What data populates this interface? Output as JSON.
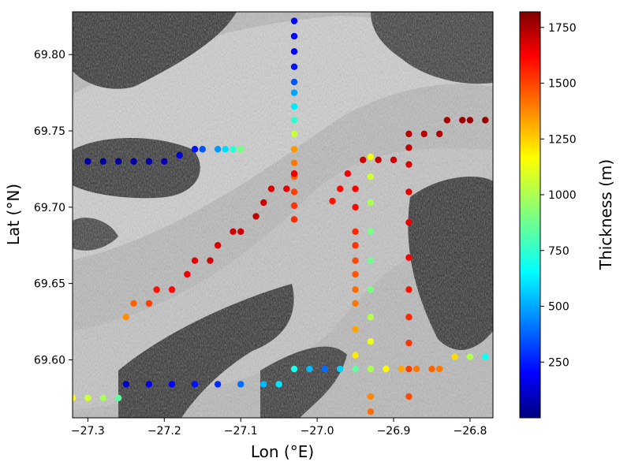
{
  "chart_data": {
    "type": "scatter",
    "title": "",
    "xlabel": "Lon (°E)",
    "ylabel": "Lat (°N)",
    "xlim": [
      -27.32,
      -26.77
    ],
    "ylim": [
      69.562,
      69.828
    ],
    "x_ticks": [
      -27.3,
      -27.2,
      -27.1,
      -27.0,
      -26.9,
      -26.8
    ],
    "x_tick_labels": [
      "−27.3",
      "−27.2",
      "−27.1",
      "−27.0",
      "−26.9",
      "−26.8"
    ],
    "y_ticks": [
      69.6,
      69.65,
      69.7,
      69.75,
      69.8
    ],
    "y_tick_labels": [
      "69.60",
      "69.65",
      "69.70",
      "69.75",
      "69.80"
    ],
    "grid": false,
    "background": "satellite image with glacier flow bands and dark ice-free mountains",
    "colorbar": {
      "label": "Thickness (m)",
      "colormap": "jet",
      "range": [
        0,
        1820
      ],
      "ticks": [
        250,
        500,
        750,
        1000,
        1250,
        1500,
        1750
      ],
      "tick_labels": [
        "250",
        "500",
        "750",
        "1000",
        "1250",
        "1500",
        "1750"
      ]
    },
    "survey_tracks": [
      {
        "name": "",
        "points": [
          [
            -27.03,
            69.822
          ],
          [
            -27.03,
            69.812
          ],
          [
            -27.03,
            69.802
          ],
          [
            -27.03,
            69.792
          ],
          [
            -27.03,
            69.782
          ],
          [
            -27.03,
            69.775
          ],
          [
            -27.03,
            69.766
          ],
          [
            -27.03,
            69.757
          ],
          [
            -27.03,
            69.748
          ],
          [
            -27.03,
            69.738
          ],
          [
            -27.03,
            69.729
          ],
          [
            -27.03,
            69.72
          ],
          [
            -27.03,
            69.71
          ],
          [
            -27.03,
            69.701
          ],
          [
            -27.03,
            69.692
          ]
        ],
        "thickness": [
          240,
          230,
          220,
          260,
          380,
          520,
          650,
          760,
          1040,
          1320,
          1380,
          1420,
          1480,
          1500,
          1520
        ]
      },
      {
        "name": "",
        "points": [
          [
            -27.3,
            69.73
          ],
          [
            -27.28,
            69.73
          ],
          [
            -27.26,
            69.73
          ],
          [
            -27.24,
            69.73
          ],
          [
            -27.22,
            69.73
          ],
          [
            -27.2,
            69.73
          ],
          [
            -27.18,
            69.734
          ],
          [
            -27.16,
            69.738
          ],
          [
            -27.15,
            69.738
          ],
          [
            -27.13,
            69.738
          ],
          [
            -27.12,
            69.738
          ],
          [
            -27.11,
            69.738
          ],
          [
            -27.1,
            69.738
          ]
        ],
        "thickness": [
          60,
          50,
          50,
          60,
          70,
          90,
          150,
          260,
          380,
          500,
          620,
          760,
          900
        ]
      },
      {
        "name": "",
        "points": [
          [
            -27.25,
            69.628
          ],
          [
            -27.24,
            69.637
          ],
          [
            -27.22,
            69.637
          ],
          [
            -27.21,
            69.646
          ],
          [
            -27.19,
            69.646
          ],
          [
            -27.17,
            69.656
          ],
          [
            -27.16,
            69.665
          ],
          [
            -27.14,
            69.665
          ],
          [
            -27.13,
            69.675
          ],
          [
            -27.11,
            69.684
          ],
          [
            -27.1,
            69.684
          ],
          [
            -27.08,
            69.694
          ],
          [
            -27.07,
            69.703
          ],
          [
            -27.06,
            69.712
          ],
          [
            -27.04,
            69.712
          ],
          [
            -27.03,
            69.722
          ]
        ],
        "thickness": [
          1340,
          1420,
          1480,
          1560,
          1580,
          1620,
          1640,
          1660,
          1660,
          1680,
          1680,
          1700,
          1680,
          1660,
          1640,
          1620
        ]
      },
      {
        "name": "",
        "points": [
          [
            -26.98,
            69.704
          ],
          [
            -26.97,
            69.712
          ],
          [
            -26.96,
            69.722
          ],
          [
            -26.94,
            69.731
          ],
          [
            -26.92,
            69.731
          ],
          [
            -26.9,
            69.731
          ],
          [
            -26.88,
            69.739
          ],
          [
            -26.88,
            69.748
          ],
          [
            -26.86,
            69.748
          ],
          [
            -26.84,
            69.748
          ],
          [
            -26.83,
            69.757
          ],
          [
            -26.81,
            69.757
          ],
          [
            -26.8,
            69.757
          ],
          [
            -26.78,
            69.757
          ]
        ],
        "thickness": [
          1560,
          1580,
          1620,
          1680,
          1700,
          1680,
          1700,
          1720,
          1720,
          1740,
          1740,
          1760,
          1760,
          1780
        ]
      },
      {
        "name": "",
        "points": [
          [
            -26.95,
            69.712
          ],
          [
            -26.95,
            69.7
          ],
          [
            -26.95,
            69.684
          ],
          [
            -26.95,
            69.675
          ],
          [
            -26.95,
            69.665
          ],
          [
            -26.95,
            69.656
          ],
          [
            -26.95,
            69.646
          ],
          [
            -26.95,
            69.637
          ],
          [
            -26.95,
            69.62
          ],
          [
            -26.95,
            69.603
          ]
        ],
        "thickness": [
          1600,
          1580,
          1520,
          1500,
          1460,
          1440,
          1400,
          1380,
          1300,
          1180
        ]
      },
      {
        "name": "",
        "points": [
          [
            -26.93,
            69.733
          ],
          [
            -26.93,
            69.72
          ],
          [
            -26.93,
            69.703
          ],
          [
            -26.93,
            69.684
          ],
          [
            -26.93,
            69.665
          ],
          [
            -26.93,
            69.646
          ],
          [
            -26.93,
            69.628
          ],
          [
            -26.93,
            69.612
          ],
          [
            -26.93,
            69.594
          ],
          [
            -26.93,
            69.576
          ],
          [
            -26.93,
            69.566
          ]
        ],
        "thickness": [
          1120,
          1050,
          980,
          900,
          880,
          900,
          1000,
          1100,
          1250,
          1350,
          1400
        ]
      },
      {
        "name": "",
        "points": [
          [
            -26.88,
            69.728
          ],
          [
            -26.88,
            69.71
          ],
          [
            -26.88,
            69.69
          ],
          [
            -26.88,
            69.667
          ],
          [
            -26.88,
            69.646
          ],
          [
            -26.88,
            69.628
          ],
          [
            -26.88,
            69.611
          ],
          [
            -26.88,
            69.594
          ],
          [
            -26.88,
            69.576
          ]
        ],
        "thickness": [
          1650,
          1640,
          1630,
          1600,
          1560,
          1520,
          1500,
          1480,
          1460
        ]
      },
      {
        "name": "",
        "points": [
          [
            -27.03,
            69.594
          ],
          [
            -27.01,
            69.594
          ],
          [
            -26.99,
            69.594
          ],
          [
            -26.97,
            69.594
          ],
          [
            -26.95,
            69.594
          ],
          [
            -26.93,
            69.594
          ],
          [
            -26.91,
            69.594
          ],
          [
            -26.89,
            69.594
          ],
          [
            -26.87,
            69.594
          ],
          [
            -26.85,
            69.594
          ],
          [
            -26.84,
            69.594
          ],
          [
            -26.82,
            69.602
          ],
          [
            -26.8,
            69.602
          ],
          [
            -26.78,
            69.602
          ]
        ],
        "thickness": [
          720,
          560,
          420,
          600,
          850,
          980,
          1150,
          1300,
          1380,
          1420,
          1380,
          1200,
          1000,
          700
        ]
      },
      {
        "name": "",
        "points": [
          [
            -27.25,
            69.584
          ],
          [
            -27.22,
            69.584
          ],
          [
            -27.19,
            69.584
          ],
          [
            -27.16,
            69.584
          ],
          [
            -27.13,
            69.584
          ],
          [
            -27.1,
            69.584
          ],
          [
            -27.07,
            69.584
          ],
          [
            -27.05,
            69.584
          ]
        ],
        "thickness": [
          120,
          180,
          220,
          260,
          300,
          420,
          560,
          640
        ]
      },
      {
        "name": "",
        "points": [
          [
            -27.32,
            69.575
          ],
          [
            -27.3,
            69.575
          ],
          [
            -27.28,
            69.575
          ],
          [
            -27.26,
            69.575
          ]
        ],
        "thickness": [
          1140,
          1050,
          980,
          850
        ]
      }
    ]
  }
}
